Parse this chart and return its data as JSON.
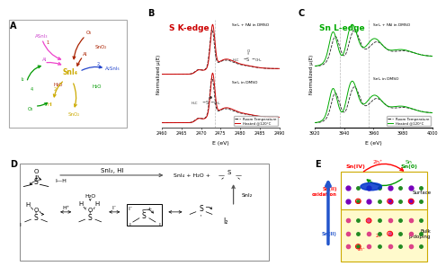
{
  "panel_label_fontsize": 7,
  "background_color": "#ffffff",
  "panelB": {
    "title": "S K-edge",
    "title_color": "#cc0000",
    "xlabel": "E (eV)",
    "ylabel": "Normalized μ(E)",
    "xlim": [
      2460,
      2490
    ],
    "xticks": [
      2460,
      2465,
      2470,
      2475,
      2480,
      2485,
      2490
    ],
    "label_rt": "Room Temperature",
    "label_ht": "Heated @120°C",
    "color_rt": "#222222",
    "color_ht": "#cc0000",
    "vline1": 2473.5,
    "vline_color": "#bbbbbb",
    "annotation1": "SnI₂ + FAI in DMSO",
    "annotation2": "SnI₂ in DMSO"
  },
  "panelC": {
    "title": "Sn L-edge",
    "title_color": "#00aa00",
    "xlabel": "E (eV)",
    "ylabel": "Normalized μ(E)",
    "xlim": [
      3920,
      4000
    ],
    "xticks": [
      3920,
      3940,
      3960,
      3980,
      4000
    ],
    "label_rt": "Room Temperature",
    "label_ht": "Heated @120°C",
    "color_rt": "#222222",
    "color_ht": "#00aa00",
    "vline1": 3937.0,
    "vline2": 3957.0,
    "vline_color": "#bbbbbb",
    "annotation1": "SnI₂ + FAI in DMSO",
    "annotation2": "SnI₂ in DMSO"
  }
}
